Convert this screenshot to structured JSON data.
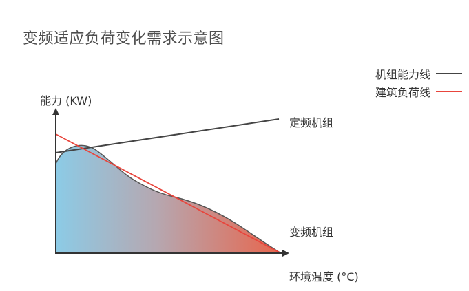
{
  "title": "变频适应负荷变化需求示意图",
  "legend": [
    {
      "label": "机组能力线",
      "color": "#444444"
    },
    {
      "label": "建筑负荷线",
      "color": "#e8453c"
    }
  ],
  "axes": {
    "y_label": "能力 (KW)",
    "x_label": "环境温度 (°C)"
  },
  "annotations": {
    "fixed_unit": "定频机组",
    "variable_unit": "变频机组"
  },
  "colors": {
    "gradient_start": "#8ccbe6",
    "gradient_end": "#e8654c",
    "capacity_line": "#444444",
    "load_line": "#e8453c",
    "curve_outline": "#555555"
  }
}
